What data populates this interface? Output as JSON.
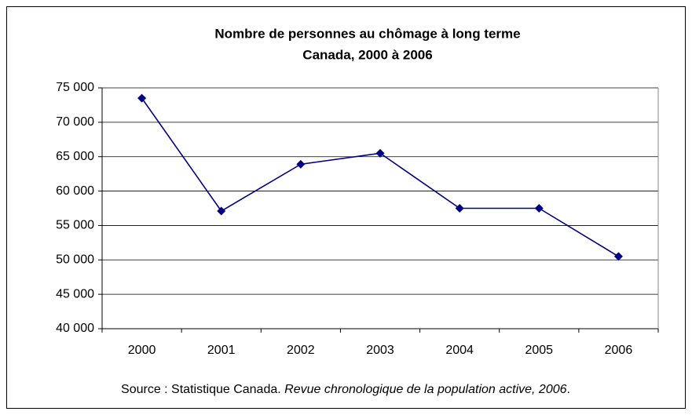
{
  "chart_data": {
    "type": "line",
    "title": "Nombre de personnes au chômage à long terme",
    "subtitle": "Canada, 2000 à 2006",
    "categories": [
      "2000",
      "2001",
      "2002",
      "2003",
      "2004",
      "2005",
      "2006"
    ],
    "series": [
      {
        "name": "Chômage à long terme",
        "color": "#000080",
        "values": [
          73500,
          57100,
          63900,
          65500,
          57500,
          57500,
          50500
        ]
      }
    ],
    "ylim": [
      40000,
      75000
    ],
    "yticks": [
      {
        "value": 40000,
        "label": "40 000"
      },
      {
        "value": 45000,
        "label": "45 000"
      },
      {
        "value": 50000,
        "label": "50 000"
      },
      {
        "value": 55000,
        "label": "55 000"
      },
      {
        "value": 60000,
        "label": "60 000"
      },
      {
        "value": 65000,
        "label": "65 000"
      },
      {
        "value": 70000,
        "label": "70 000"
      },
      {
        "value": 75000,
        "label": "75 000"
      }
    ],
    "grid": true,
    "source": {
      "prefix": "Source : Statistique Canada. ",
      "title": "Revue chronologique de la population active, 2006",
      "suffix": "."
    }
  }
}
